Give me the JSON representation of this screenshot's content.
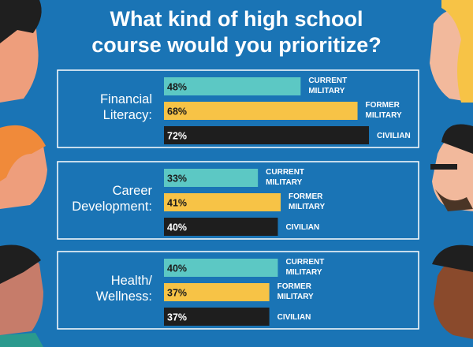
{
  "chart_data": {
    "type": "bar",
    "orientation": "horizontal",
    "title": "What kind of high school course would you prioritize?",
    "categories": [
      {
        "lines": [
          "Financial",
          "Literacy:"
        ]
      },
      {
        "lines": [
          "Career",
          "Development:"
        ]
      },
      {
        "lines": [
          "Health/",
          "Wellness:"
        ]
      }
    ],
    "series": [
      {
        "name": "CURRENT MILITARY",
        "label_lines": [
          "CURRENT",
          "MILITARY"
        ],
        "color": "#5cc8c4",
        "text_color": "#1b1b1b",
        "values": [
          48,
          33,
          40
        ]
      },
      {
        "name": "FORMER MILITARY",
        "label_lines": [
          "FORMER",
          "MILITARY"
        ],
        "color": "#f7c346",
        "text_color": "#1b1b1b",
        "values": [
          68,
          41,
          37
        ]
      },
      {
        "name": "CIVILIAN",
        "label_lines": [
          "CIVILIAN"
        ],
        "color": "#1e1e1e",
        "text_color": "#ffffff",
        "values": [
          72,
          40,
          37
        ]
      }
    ],
    "value_suffix": "%",
    "xlim": [
      0,
      100
    ]
  },
  "colors": {
    "background": "#1a74b5",
    "panel_border": "#ffffff"
  }
}
